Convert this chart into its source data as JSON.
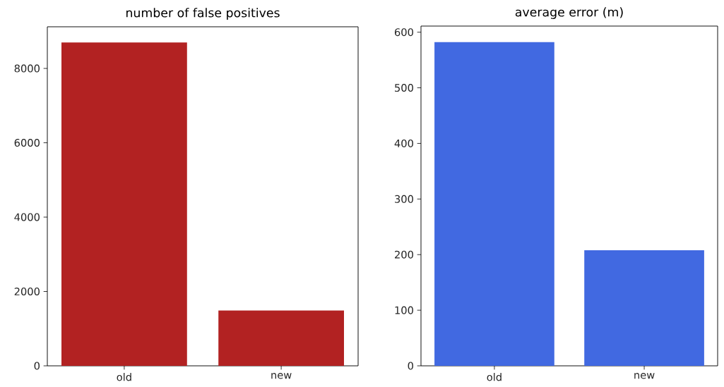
{
  "chart_data": [
    {
      "type": "bar",
      "title": "number of false positives",
      "categories": [
        "old",
        "new"
      ],
      "values": [
        8700,
        1490
      ],
      "color": "#b22222",
      "ylim": [
        0,
        9120
      ],
      "yticks": [
        0,
        2000,
        4000,
        6000,
        8000
      ]
    },
    {
      "type": "bar",
      "title": "average error (m)",
      "categories": [
        "old",
        "new"
      ],
      "values": [
        582,
        208
      ],
      "color": "#4169e1",
      "ylim": [
        0,
        611
      ],
      "yticks": [
        0,
        100,
        200,
        300,
        400,
        500,
        600
      ]
    }
  ]
}
